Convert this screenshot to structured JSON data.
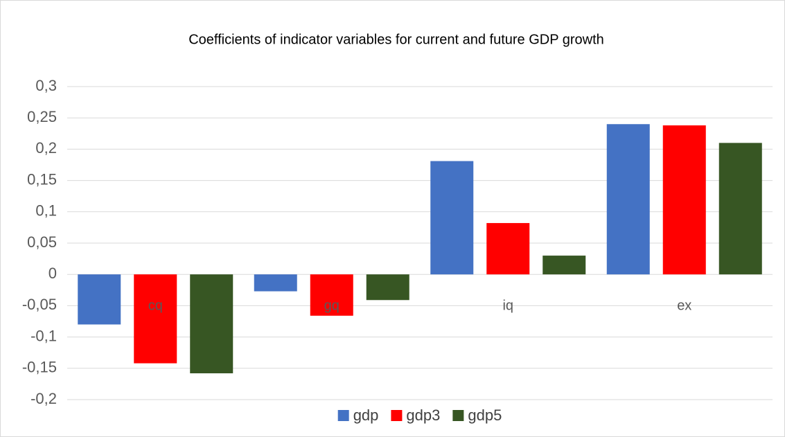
{
  "chart_data": {
    "type": "bar",
    "title": "Coefficients of indicator variables for current and future GDP growth",
    "categories": [
      "cq",
      "gq",
      "iq",
      "ex"
    ],
    "series": [
      {
        "name": "gdp",
        "color": "#4472c4",
        "values": [
          -0.08,
          -0.027,
          0.181,
          0.24
        ]
      },
      {
        "name": "gdp3",
        "color": "#ff0000",
        "values": [
          -0.142,
          -0.066,
          0.082,
          0.238
        ]
      },
      {
        "name": "gdp5",
        "color": "#375623",
        "values": [
          -0.158,
          -0.041,
          0.03,
          0.21
        ]
      }
    ],
    "ylim": [
      -0.2,
      0.3
    ],
    "yticks": [
      {
        "value": -0.2,
        "label": "-0,2"
      },
      {
        "value": -0.15,
        "label": "-0,15"
      },
      {
        "value": -0.1,
        "label": "-0,1"
      },
      {
        "value": -0.05,
        "label": "-0,05"
      },
      0,
      {
        "value": 0.05,
        "label": "0,05"
      },
      {
        "value": 0.1,
        "label": "0,1"
      },
      {
        "value": 0.15,
        "label": "0,15"
      },
      {
        "value": 0.2,
        "label": "0,2"
      },
      {
        "value": 0.25,
        "label": "0,25"
      },
      {
        "value": 0.3,
        "label": "0,3"
      }
    ],
    "grid": true,
    "legend": "bottom"
  }
}
